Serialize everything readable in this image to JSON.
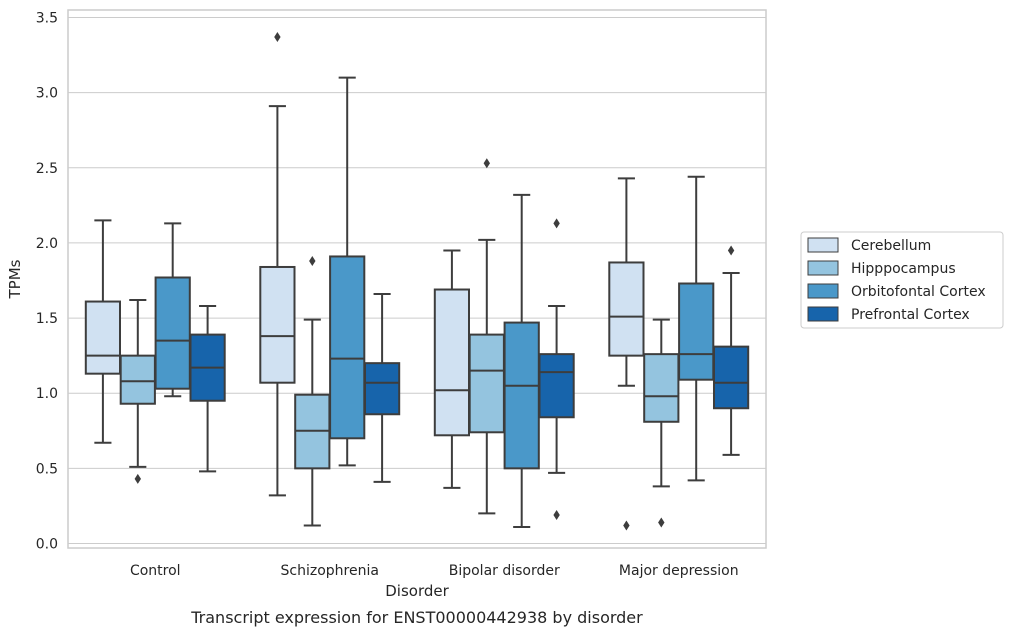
{
  "chart_data": {
    "type": "box",
    "caption": "Transcript expression for ENST00000442938 by disorder",
    "xlabel": "Disorder",
    "ylabel": "TPMs",
    "ylim": [
      -0.03,
      3.55
    ],
    "yticks": [
      "0.0",
      "0.5",
      "1.0",
      "1.5",
      "2.0",
      "2.5",
      "3.0",
      "3.5"
    ],
    "ytick_values": [
      0,
      0.5,
      1.0,
      1.5,
      2.0,
      2.5,
      3.0,
      3.5
    ],
    "grid": true,
    "legend_position": "right",
    "categories": [
      "Control",
      "Schizophrenia",
      "Bipolar disorder",
      "Major depression"
    ],
    "series": [
      {
        "name": "Cerebellum",
        "color": "#d0e1f2",
        "boxes": [
          {
            "whislo": 0.67,
            "q1": 1.13,
            "med": 1.25,
            "q3": 1.61,
            "whishi": 2.15,
            "fliers": []
          },
          {
            "whislo": 0.32,
            "q1": 1.07,
            "med": 1.38,
            "q3": 1.84,
            "whishi": 2.91,
            "fliers": [
              3.37
            ]
          },
          {
            "whislo": 0.37,
            "q1": 0.72,
            "med": 1.02,
            "q3": 1.69,
            "whishi": 1.95,
            "fliers": []
          },
          {
            "whislo": 1.05,
            "q1": 1.25,
            "med": 1.51,
            "q3": 1.87,
            "whishi": 2.43,
            "fliers": [
              0.12
            ]
          }
        ]
      },
      {
        "name": "Hipppocampus",
        "color": "#94c4df",
        "boxes": [
          {
            "whislo": 0.51,
            "q1": 0.93,
            "med": 1.08,
            "q3": 1.25,
            "whishi": 1.62,
            "fliers": [
              0.43
            ]
          },
          {
            "whislo": 0.12,
            "q1": 0.5,
            "med": 0.75,
            "q3": 0.99,
            "whishi": 1.49,
            "fliers": [
              1.88
            ]
          },
          {
            "whislo": 0.2,
            "q1": 0.74,
            "med": 1.15,
            "q3": 1.39,
            "whishi": 2.02,
            "fliers": [
              2.53
            ]
          },
          {
            "whislo": 0.38,
            "q1": 0.81,
            "med": 0.98,
            "q3": 1.26,
            "whishi": 1.49,
            "fliers": [
              0.14
            ]
          }
        ]
      },
      {
        "name": "Orbitofontal Cortex",
        "color": "#4a98c9",
        "boxes": [
          {
            "whislo": 0.98,
            "q1": 1.03,
            "med": 1.35,
            "q3": 1.77,
            "whishi": 2.13,
            "fliers": []
          },
          {
            "whislo": 0.52,
            "q1": 0.7,
            "med": 1.23,
            "q3": 1.91,
            "whishi": 3.1,
            "fliers": []
          },
          {
            "whislo": 0.11,
            "q1": 0.5,
            "med": 1.05,
            "q3": 1.47,
            "whishi": 2.32,
            "fliers": []
          },
          {
            "whislo": 0.42,
            "q1": 1.09,
            "med": 1.26,
            "q3": 1.73,
            "whishi": 2.44,
            "fliers": []
          }
        ]
      },
      {
        "name": "Prefrontal Cortex",
        "color": "#1764ab",
        "boxes": [
          {
            "whislo": 0.48,
            "q1": 0.95,
            "med": 1.17,
            "q3": 1.39,
            "whishi": 1.58,
            "fliers": []
          },
          {
            "whislo": 0.41,
            "q1": 0.86,
            "med": 1.07,
            "q3": 1.2,
            "whishi": 1.66,
            "fliers": []
          },
          {
            "whislo": 0.47,
            "q1": 0.84,
            "med": 1.14,
            "q3": 1.26,
            "whishi": 1.58,
            "fliers": [
              2.13,
              0.19
            ]
          },
          {
            "whislo": 0.59,
            "q1": 0.9,
            "med": 1.07,
            "q3": 1.31,
            "whishi": 1.8,
            "fliers": [
              1.95
            ]
          }
        ]
      }
    ]
  }
}
